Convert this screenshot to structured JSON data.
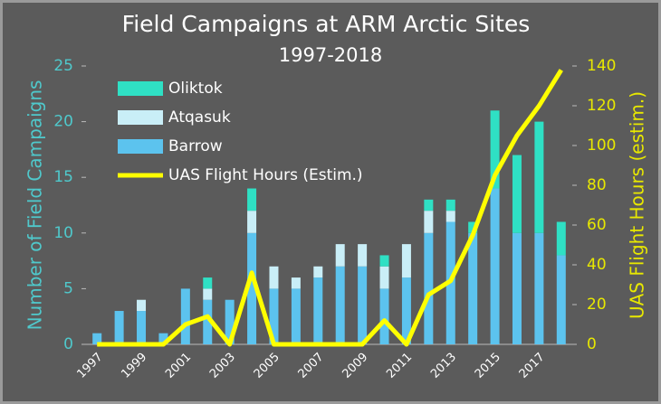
{
  "chart_data": {
    "type": "bar",
    "stacked": true,
    "title": "Field Campaigns at ARM Arctic Sites",
    "subtitle": "1997-2018",
    "ylabel": "Number of Field Campaigns",
    "y2label": "UAS Flight Hours (estim.)",
    "categories": [
      "1997",
      null,
      "1999",
      null,
      "2001",
      null,
      "2003",
      null,
      "2005",
      null,
      "2007",
      null,
      "2009",
      null,
      "2011",
      null,
      "2013",
      null,
      "2015",
      null,
      "2017",
      null
    ],
    "series": [
      {
        "name": "Barrow",
        "color": "#5cc3ee",
        "values": [
          1,
          3,
          3,
          1,
          5,
          4,
          4,
          10,
          5,
          5,
          6,
          7,
          7,
          5,
          6,
          10,
          11,
          10,
          14,
          10,
          10,
          8
        ]
      },
      {
        "name": "Atqasuk",
        "color": "#c9eef7",
        "values": [
          0,
          0,
          1,
          0,
          0,
          1,
          0,
          2,
          2,
          1,
          1,
          2,
          2,
          2,
          3,
          2,
          1,
          0,
          0,
          0,
          0,
          0
        ]
      },
      {
        "name": "Oliktok",
        "color": "#2fe0c4",
        "values": [
          0,
          0,
          0,
          0,
          0,
          1,
          0,
          2,
          0,
          0,
          0,
          0,
          0,
          1,
          0,
          1,
          1,
          1,
          7,
          7,
          10,
          3
        ]
      },
      {
        "name": "UAS Flight Hours (Estim.)",
        "type": "line",
        "axis": "y2",
        "color": "#ffff00",
        "values": [
          0,
          0,
          0,
          0,
          10,
          14,
          0,
          36,
          0,
          0,
          0,
          0,
          0,
          12,
          0,
          25,
          32,
          55,
          85,
          105,
          120,
          138
        ]
      }
    ],
    "legend_order": [
      2,
      1,
      0,
      3
    ],
    "ylim": [
      0,
      25
    ],
    "yticks": [
      0,
      5,
      10,
      15,
      20,
      25
    ],
    "y2lim": [
      0,
      140
    ],
    "y2ticks": [
      0,
      20,
      40,
      60,
      80,
      100,
      120,
      140
    ],
    "legend": "upper left"
  }
}
